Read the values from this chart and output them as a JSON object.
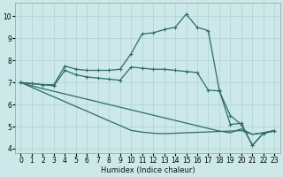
{
  "xlabel": "Humidex (Indice chaleur)",
  "xlim": [
    -0.5,
    23.5
  ],
  "ylim": [
    3.8,
    10.6
  ],
  "yticks": [
    4,
    5,
    6,
    7,
    8,
    9,
    10
  ],
  "xticks": [
    0,
    1,
    2,
    3,
    4,
    5,
    6,
    7,
    8,
    9,
    10,
    11,
    12,
    13,
    14,
    15,
    16,
    17,
    18,
    19,
    20,
    21,
    22,
    23
  ],
  "bg_color": "#cce8e8",
  "line_color": "#2e6b6b",
  "grid_color": "#b8d8d8",
  "line1_x": [
    0,
    1,
    2,
    3,
    4,
    5,
    6,
    7,
    8,
    9,
    10,
    11,
    12,
    13,
    14,
    15,
    16,
    17,
    18,
    19,
    20,
    21,
    22,
    23
  ],
  "line1_y": [
    7.0,
    6.95,
    6.9,
    6.9,
    7.75,
    7.6,
    7.55,
    7.55,
    7.55,
    7.6,
    8.3,
    9.2,
    9.25,
    9.4,
    9.5,
    10.1,
    9.5,
    9.35,
    6.65,
    5.1,
    5.15,
    4.15,
    4.7,
    4.8
  ],
  "line2_x": [
    0,
    1,
    2,
    3,
    4,
    5,
    6,
    7,
    8,
    9,
    10,
    11,
    12,
    13,
    14,
    15,
    16,
    17,
    18,
    19,
    20,
    21,
    22,
    23
  ],
  "line2_y": [
    7.0,
    6.95,
    6.9,
    6.85,
    7.55,
    7.35,
    7.25,
    7.2,
    7.15,
    7.1,
    7.7,
    7.65,
    7.6,
    7.6,
    7.55,
    7.5,
    7.45,
    6.65,
    6.62,
    5.5,
    5.1,
    4.15,
    4.7,
    4.8
  ],
  "line3_x": [
    0,
    1,
    2,
    3,
    4,
    5,
    6,
    7,
    8,
    9,
    10,
    11,
    12,
    13,
    14,
    15,
    16,
    17,
    18,
    19,
    20,
    21,
    22,
    23
  ],
  "line3_y": [
    7.0,
    6.85,
    6.72,
    6.6,
    6.48,
    6.36,
    6.24,
    6.12,
    6.0,
    5.88,
    5.76,
    5.64,
    5.52,
    5.4,
    5.28,
    5.16,
    5.04,
    4.92,
    4.8,
    4.72,
    4.9,
    4.65,
    4.72,
    4.82
  ],
  "line4_x": [
    0,
    1,
    2,
    3,
    4,
    5,
    6,
    7,
    8,
    9,
    10,
    11,
    12,
    13,
    14,
    15,
    16,
    17,
    18,
    19,
    20,
    21,
    22,
    23
  ],
  "line4_y": [
    7.0,
    6.78,
    6.56,
    6.35,
    6.13,
    5.91,
    5.7,
    5.48,
    5.26,
    5.05,
    4.83,
    4.75,
    4.7,
    4.68,
    4.7,
    4.72,
    4.74,
    4.76,
    4.78,
    4.8,
    4.82,
    4.65,
    4.72,
    4.82
  ]
}
